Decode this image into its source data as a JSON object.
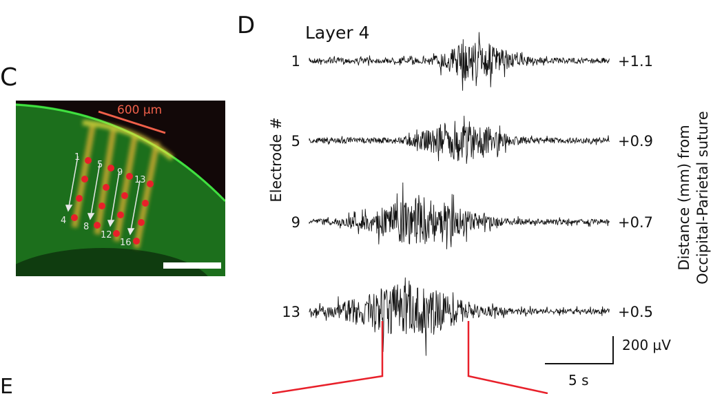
{
  "panel_c": {
    "label": "C",
    "scale_label": "600 µm",
    "electrode_numbers": [
      "1",
      "4",
      "5",
      "8",
      "9",
      "12",
      "13",
      "16"
    ],
    "colors": {
      "tissue": "#1f8a1f",
      "dye": "#f0c030",
      "electrode": "#e8202a",
      "scale_line": "#f0604a",
      "arrow": "#e8e8e8",
      "scale_bar": "#ffffff"
    }
  },
  "panel_d": {
    "label": "D",
    "title": "Layer 4",
    "y_label": "Electrode #",
    "right_label_line1": "Distance (mm) from",
    "right_label_line2": "Occipital-Parietal suture",
    "traces": [
      {
        "electrode": "1",
        "distance": "+1.1"
      },
      {
        "electrode": "5",
        "distance": "+0.9"
      },
      {
        "electrode": "9",
        "distance": "+0.7"
      },
      {
        "electrode": "13",
        "distance": "+0.5"
      }
    ],
    "scale_voltage": "200 µV",
    "scale_time": "5 s",
    "zoom_line_color": "#e8202a"
  },
  "panel_e": {
    "label": "E"
  }
}
